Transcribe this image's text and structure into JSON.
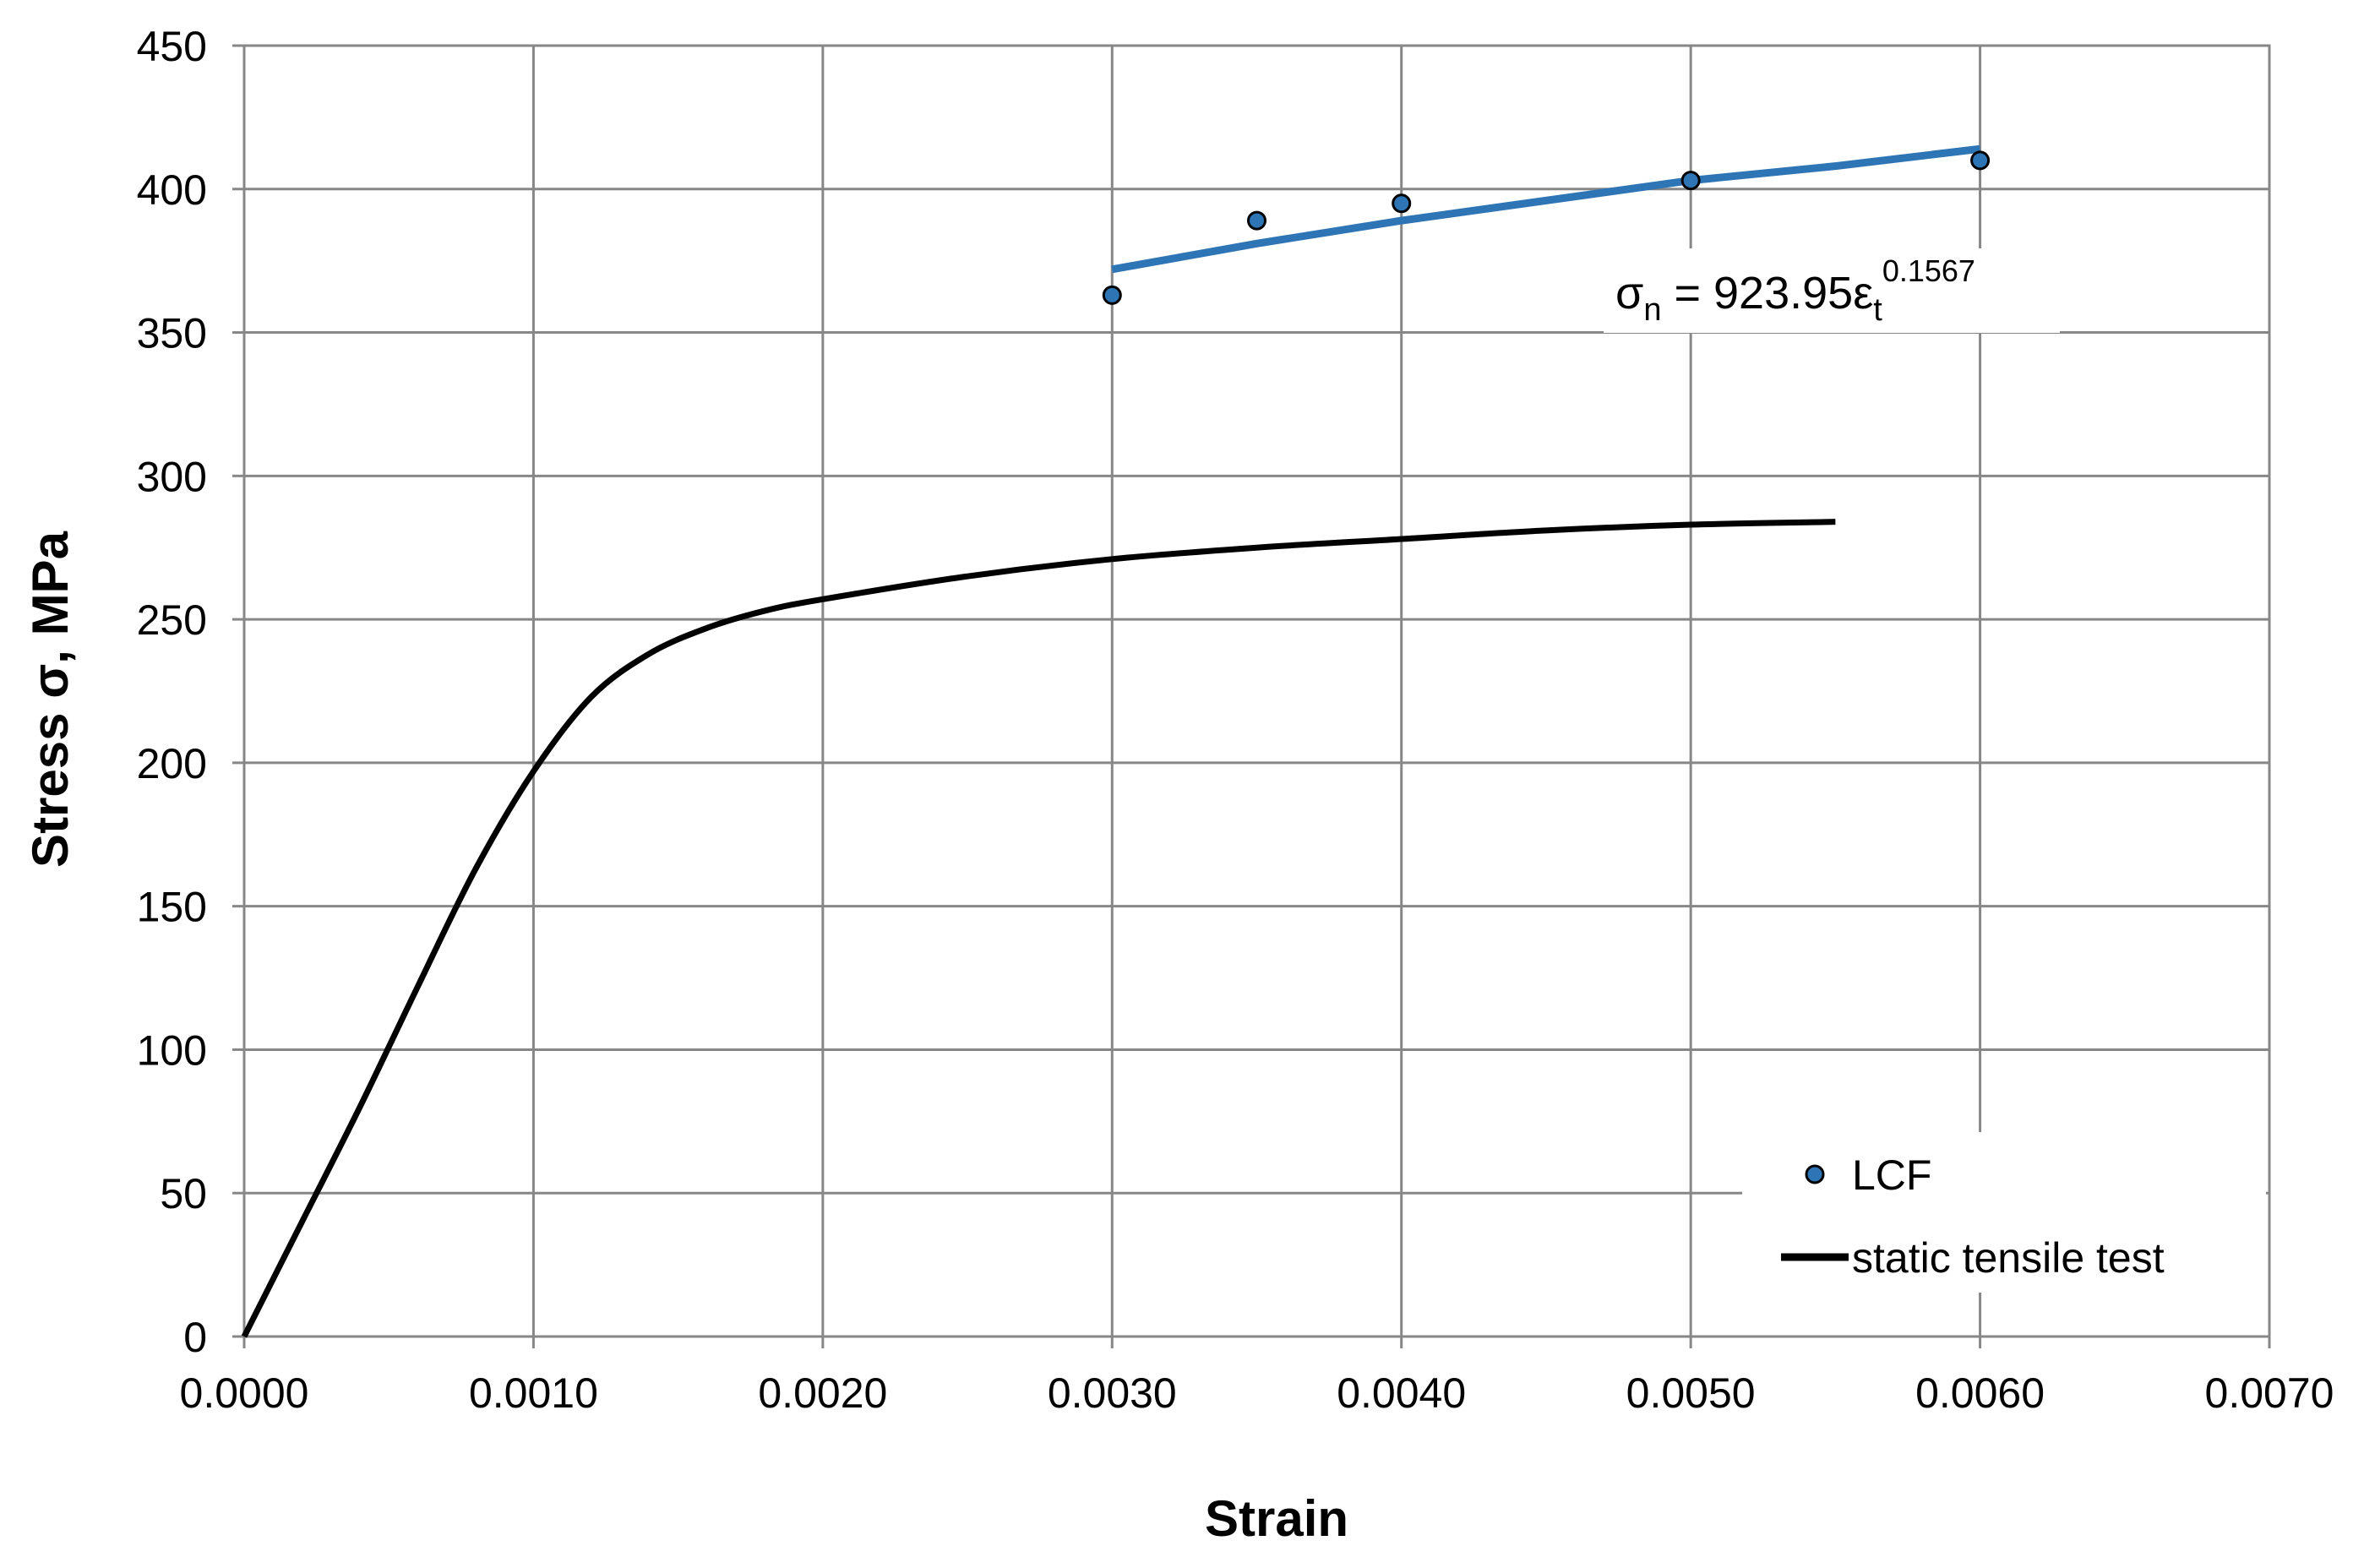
{
  "chart_data": {
    "type": "line",
    "title": "",
    "xlabel": "Strain",
    "ylabel": "Stress σ, MPa",
    "xlim": [
      0,
      0.007
    ],
    "ylim": [
      0,
      450
    ],
    "x_ticks": [
      "0.0000",
      "0.0010",
      "0.0020",
      "0.0030",
      "0.0040",
      "0.0050",
      "0.0060",
      "0.0070"
    ],
    "y_ticks": [
      "0",
      "50",
      "100",
      "150",
      "200",
      "250",
      "300",
      "350",
      "400",
      "450"
    ],
    "grid": true,
    "legend_position": "bottom-right",
    "series": [
      {
        "name": "LCF",
        "type": "scatter",
        "color": "#2e75b6",
        "x": [
          0.003,
          0.0035,
          0.004,
          0.005,
          0.006
        ],
        "y": [
          363,
          389,
          395,
          403,
          410
        ]
      },
      {
        "name": "static tensile test",
        "type": "line",
        "color": "#000000",
        "x": [
          0,
          0.0002,
          0.0004,
          0.0006,
          0.0008,
          0.001,
          0.0012,
          0.0014,
          0.0016,
          0.0018,
          0.002,
          0.0025,
          0.003,
          0.0035,
          0.004,
          0.0045,
          0.005,
          0.0055
        ],
        "y": [
          0,
          40,
          80,
          122,
          163,
          197,
          223,
          238,
          247,
          253,
          257,
          265,
          271,
          275,
          278,
          281,
          283,
          284
        ]
      },
      {
        "type": "trendline",
        "color": "#2e75b6",
        "x": [
          0.003,
          0.0035,
          0.004,
          0.0045,
          0.005,
          0.0055,
          0.006
        ],
        "y": [
          372,
          381,
          389,
          396,
          403,
          408,
          414
        ]
      }
    ],
    "annotation": {
      "sigma": "σ",
      "sigma_sub": "n",
      "equals": " = 923.95",
      "epsilon": "ε",
      "epsilon_sub": "t",
      "exponent": "0.1567"
    }
  }
}
